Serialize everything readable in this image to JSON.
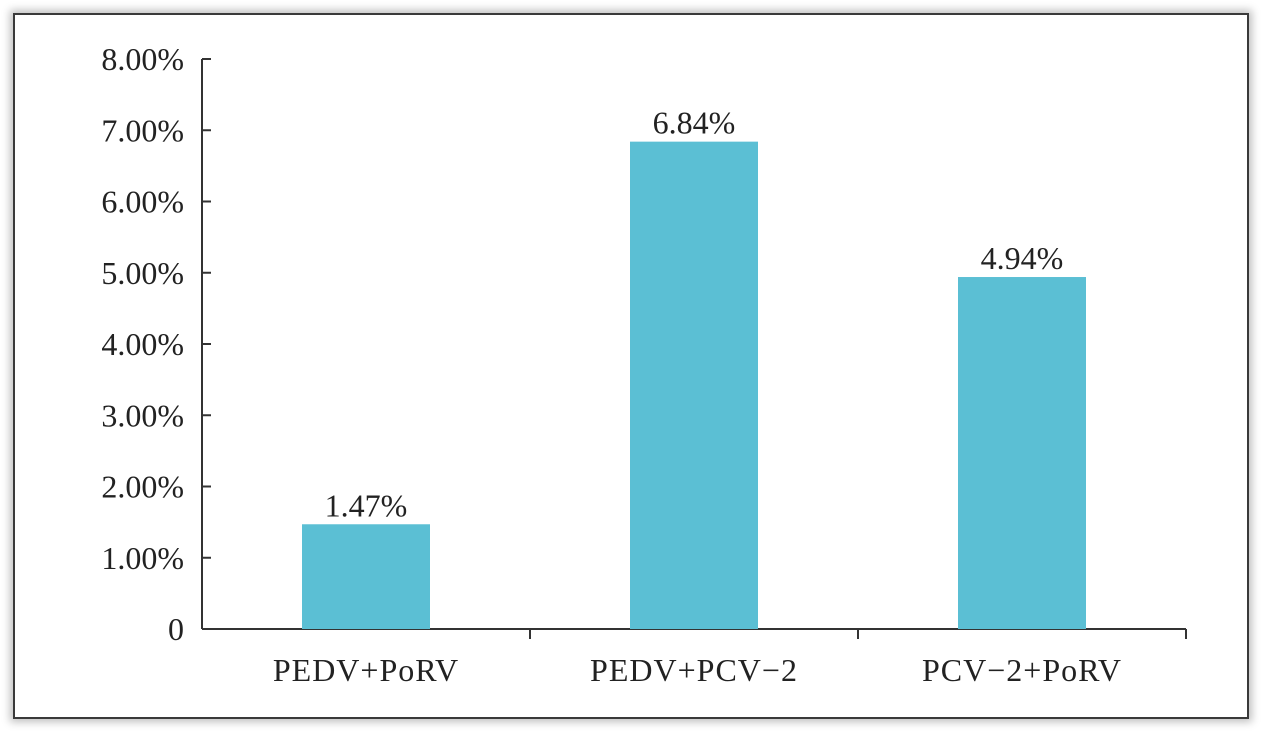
{
  "chart_data": {
    "type": "bar",
    "categories": [
      "PEDV+PoRV",
      "PEDV+PCV−2",
      "PCV−2+PoRV"
    ],
    "values": [
      1.47,
      6.84,
      4.94
    ],
    "data_labels": [
      "1.47%",
      "6.84%",
      "4.94%"
    ],
    "y_ticks": [
      0,
      1,
      2,
      3,
      4,
      5,
      6,
      7,
      8
    ],
    "y_tick_labels": [
      "0",
      "1.00%",
      "2.00%",
      "3.00%",
      "4.00%",
      "5.00%",
      "6.00%",
      "7.00%",
      "8.00%"
    ],
    "ylim": [
      0,
      8
    ],
    "title": "",
    "xlabel": "",
    "ylabel": "",
    "grid": false,
    "legend": "none",
    "bar_color": "#5bbfd4"
  }
}
